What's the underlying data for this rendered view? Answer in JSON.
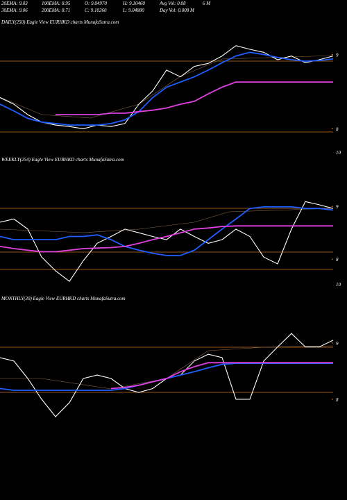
{
  "header": [
    "20EMA: 9.03",
    "100EMA: 8.95",
    "O: 9.04970",
    "H: 9.10460",
    "Avg Vol: 0.08",
    "6  M",
    "30EMA: 9.06",
    "200EMA: 8.71",
    "C: 9.10260",
    "L: 9.04880",
    "Day Vol: 0.008 M"
  ],
  "chart_data": [
    {
      "type": "line",
      "title": "DAILY(250) Eagle  View  EURHKD charts MunafaSutra.com",
      "ylim": [
        7.63,
        9.36
      ],
      "yticks": [
        9,
        8
      ],
      "lower_label": "10",
      "series": [
        {
          "color": "#ffffff",
          "values": [
            8.42,
            8.33,
            8.19,
            8.09,
            8.05,
            8.03,
            8.0,
            8.05,
            8.03,
            8.07,
            8.33,
            8.51,
            8.79,
            8.7,
            8.84,
            8.88,
            8.98,
            9.12,
            9.07,
            9.03,
            8.93,
            8.98,
            8.89,
            8.93,
            8.98
          ]
        },
        {
          "color": "#1e5eff",
          "values": [
            8.33,
            8.24,
            8.14,
            8.09,
            8.07,
            8.05,
            8.05,
            8.05,
            8.07,
            8.12,
            8.23,
            8.42,
            8.56,
            8.63,
            8.7,
            8.79,
            8.89,
            8.98,
            9.03,
            9.0,
            8.96,
            8.93,
            8.91,
            8.92,
            8.94
          ]
        },
        {
          "color": "#e040e0",
          "values": [
            null,
            null,
            null,
            null,
            8.19,
            8.19,
            8.19,
            8.19,
            8.21,
            8.21,
            8.23,
            8.25,
            8.28,
            8.33,
            8.37,
            8.47,
            8.56,
            8.63,
            8.63,
            8.63,
            8.63,
            8.63,
            8.63,
            8.63,
            8.63
          ]
        }
      ]
    },
    {
      "type": "line",
      "title": "WEEKLY(254) Eagle  View  EURHKD charts MunafaSutra.com",
      "ylim": [
        7.45,
        9.91
      ],
      "yticks": [
        9,
        8
      ],
      "lower_label": "10",
      "series": [
        {
          "color": "#ffffff",
          "values": [
            8.7,
            8.76,
            8.57,
            8.04,
            7.78,
            7.58,
            7.97,
            8.3,
            8.43,
            8.57,
            8.5,
            8.43,
            8.37,
            8.57,
            8.43,
            8.3,
            8.37,
            8.57,
            8.43,
            8.04,
            7.91,
            8.57,
            9.09,
            9.03,
            8.96
          ]
        },
        {
          "color": "#1e5eff",
          "values": [
            8.43,
            8.37,
            8.37,
            8.37,
            8.37,
            8.43,
            8.43,
            8.46,
            8.37,
            8.24,
            8.17,
            8.11,
            8.07,
            8.07,
            8.17,
            8.37,
            8.57,
            8.76,
            8.96,
            8.99,
            8.99,
            8.99,
            8.96,
            8.96,
            8.93
          ]
        },
        {
          "color": "#e040e0",
          "values": [
            8.24,
            8.2,
            8.17,
            8.14,
            8.14,
            8.17,
            8.2,
            8.21,
            8.22,
            8.24,
            8.3,
            8.37,
            8.43,
            8.5,
            8.57,
            8.59,
            8.62,
            8.63,
            8.63,
            8.63,
            8.63,
            8.63,
            8.63,
            8.63,
            8.63
          ]
        }
      ]
    },
    {
      "type": "line",
      "title": "MONTHLY(30) Eagle  View  EURHKD charts MunafaSutra.com",
      "ylim": [
        7.69,
        9.79
      ],
      "yticks": [
        9,
        8
      ],
      "series": [
        {
          "color": "#ffffff",
          "values": [
            8.74,
            8.68,
            8.37,
            8.0,
            7.69,
            7.94,
            8.37,
            8.43,
            8.37,
            8.19,
            8.12,
            8.19,
            8.37,
            8.43,
            8.68,
            8.8,
            8.74,
            8.0,
            8.0,
            8.68,
            8.93,
            9.17,
            8.93,
            8.93,
            9.05
          ]
        },
        {
          "color": "#1e5eff",
          "values": [
            8.19,
            8.16,
            8.16,
            8.16,
            8.16,
            8.16,
            8.16,
            8.16,
            8.16,
            8.19,
            8.25,
            8.31,
            8.37,
            8.43,
            8.49,
            8.56,
            8.62,
            8.64,
            8.64,
            8.64,
            8.64,
            8.64,
            8.64,
            8.64,
            8.64
          ]
        },
        {
          "color": "#e040e0",
          "values": [
            null,
            null,
            null,
            null,
            null,
            null,
            null,
            null,
            8.19,
            8.21,
            8.25,
            8.31,
            8.37,
            8.49,
            8.58,
            8.65,
            8.65,
            8.65,
            8.65,
            8.65,
            8.65,
            8.65,
            8.65,
            8.65,
            8.65
          ]
        }
      ]
    }
  ]
}
